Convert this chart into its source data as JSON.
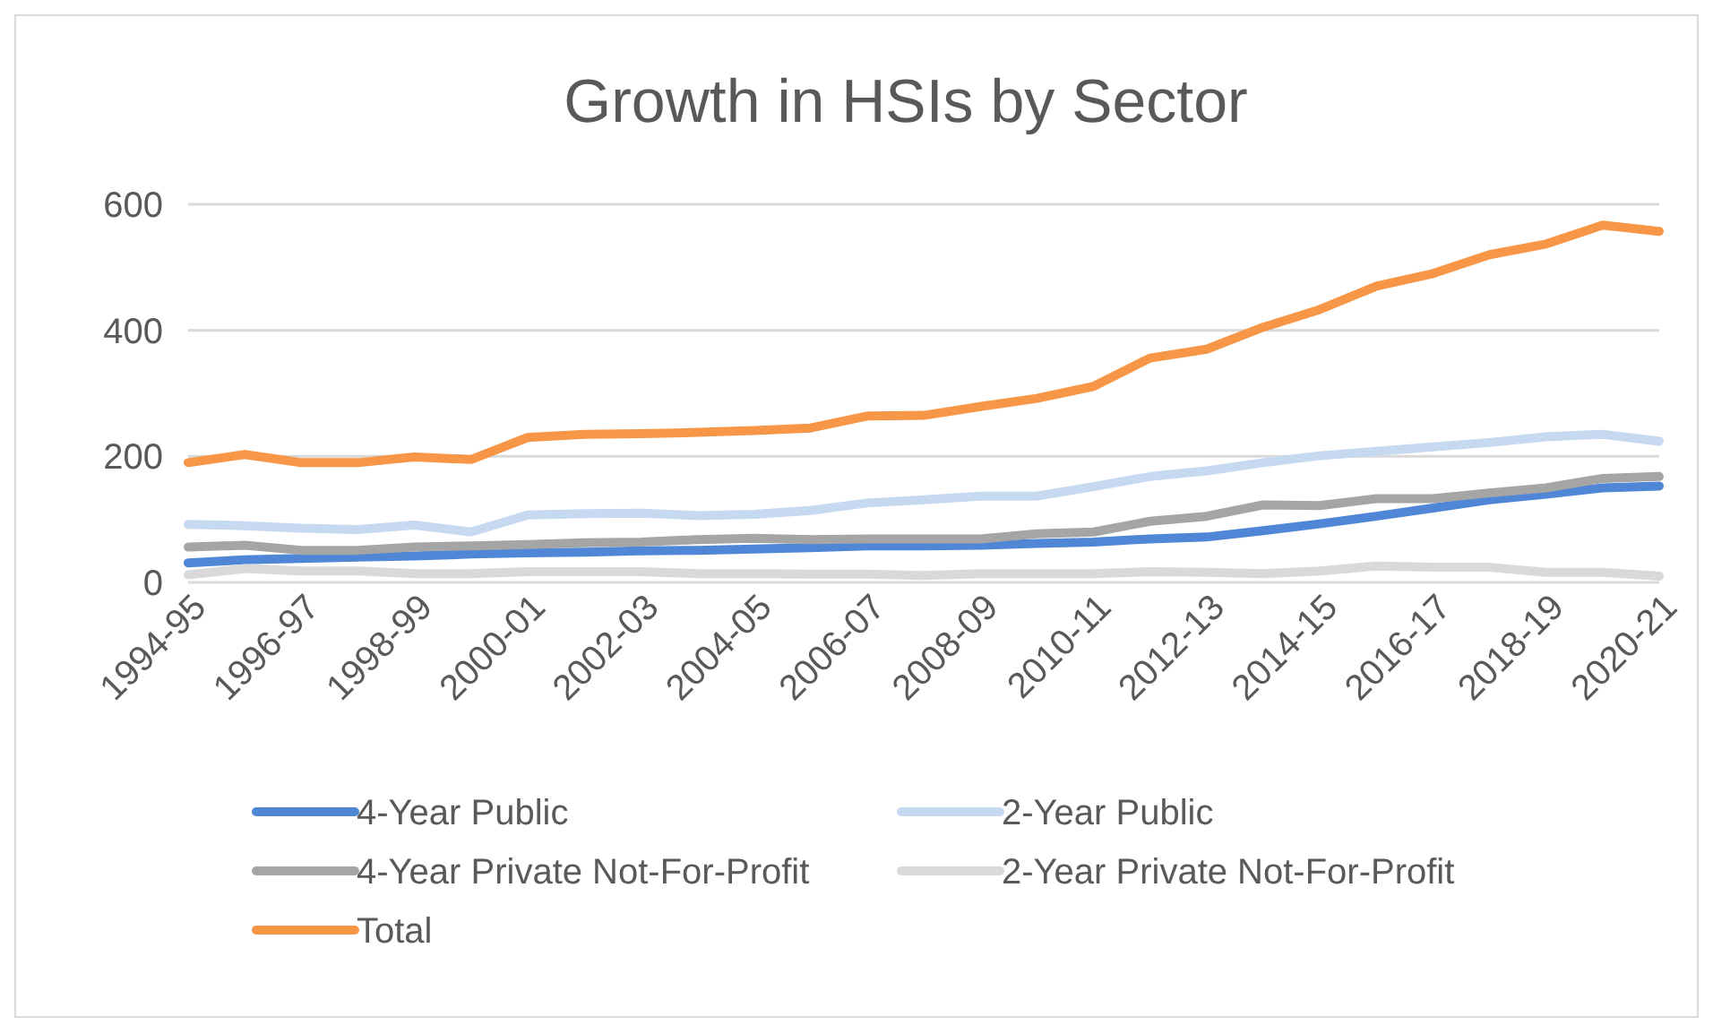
{
  "chart_data": {
    "type": "line",
    "title": "Growth in HSIs by Sector",
    "categories": [
      "1994-95",
      null,
      "1996-97",
      null,
      "1998-99",
      null,
      "2000-01",
      null,
      "2002-03",
      null,
      "2004-05",
      null,
      "2006-07",
      null,
      "2008-09",
      null,
      "2010-11",
      null,
      "2012-13",
      null,
      "2014-15",
      null,
      "2016-17",
      null,
      "2018-19",
      null,
      "2020-21"
    ],
    "series": [
      {
        "name": "4-Year Public",
        "color": "#4f87d6",
        "values": [
          31,
          36,
          38,
          40,
          42,
          45,
          47,
          48,
          50,
          51,
          53,
          55,
          58,
          58,
          59,
          62,
          64,
          69,
          72,
          82,
          93,
          105,
          118,
          131,
          140,
          150,
          153
        ]
      },
      {
        "name": "2-Year Public",
        "color": "#c6d9f1",
        "values": [
          92,
          90,
          86,
          84,
          91,
          80,
          107,
          109,
          110,
          106,
          108,
          114,
          126,
          131,
          137,
          137,
          152,
          168,
          177,
          190,
          201,
          208,
          215,
          222,
          231,
          235,
          224
        ]
      },
      {
        "name": "4-Year Private Not-For-Profit",
        "color": "#a5a5a5",
        "values": [
          56,
          59,
          51,
          51,
          56,
          58,
          60,
          63,
          64,
          68,
          70,
          68,
          69,
          69,
          69,
          77,
          80,
          97,
          105,
          123,
          122,
          133,
          133,
          142,
          150,
          165,
          168
        ]
      },
      {
        "name": "2-Year Private Not-For-Profit",
        "color": "#d9d9d9",
        "values": [
          12,
          22,
          18,
          18,
          14,
          14,
          17,
          17,
          17,
          14,
          14,
          13,
          13,
          11,
          14,
          14,
          14,
          17,
          16,
          14,
          18,
          26,
          24,
          24,
          16,
          16,
          10
        ]
      },
      {
        "name": "Total",
        "color": "#f79646",
        "values": [
          190,
          203,
          190,
          190,
          199,
          195,
          230,
          235,
          236,
          238,
          241,
          245,
          264,
          265,
          279,
          292,
          311,
          356,
          370,
          405,
          433,
          470,
          490,
          520,
          537,
          567,
          557
        ]
      }
    ],
    "ylim": [
      0,
      600
    ],
    "yticks": [
      0,
      200,
      400,
      600
    ],
    "grid": "y",
    "legend": "bottom",
    "marker": "none",
    "line_style": "solid"
  }
}
